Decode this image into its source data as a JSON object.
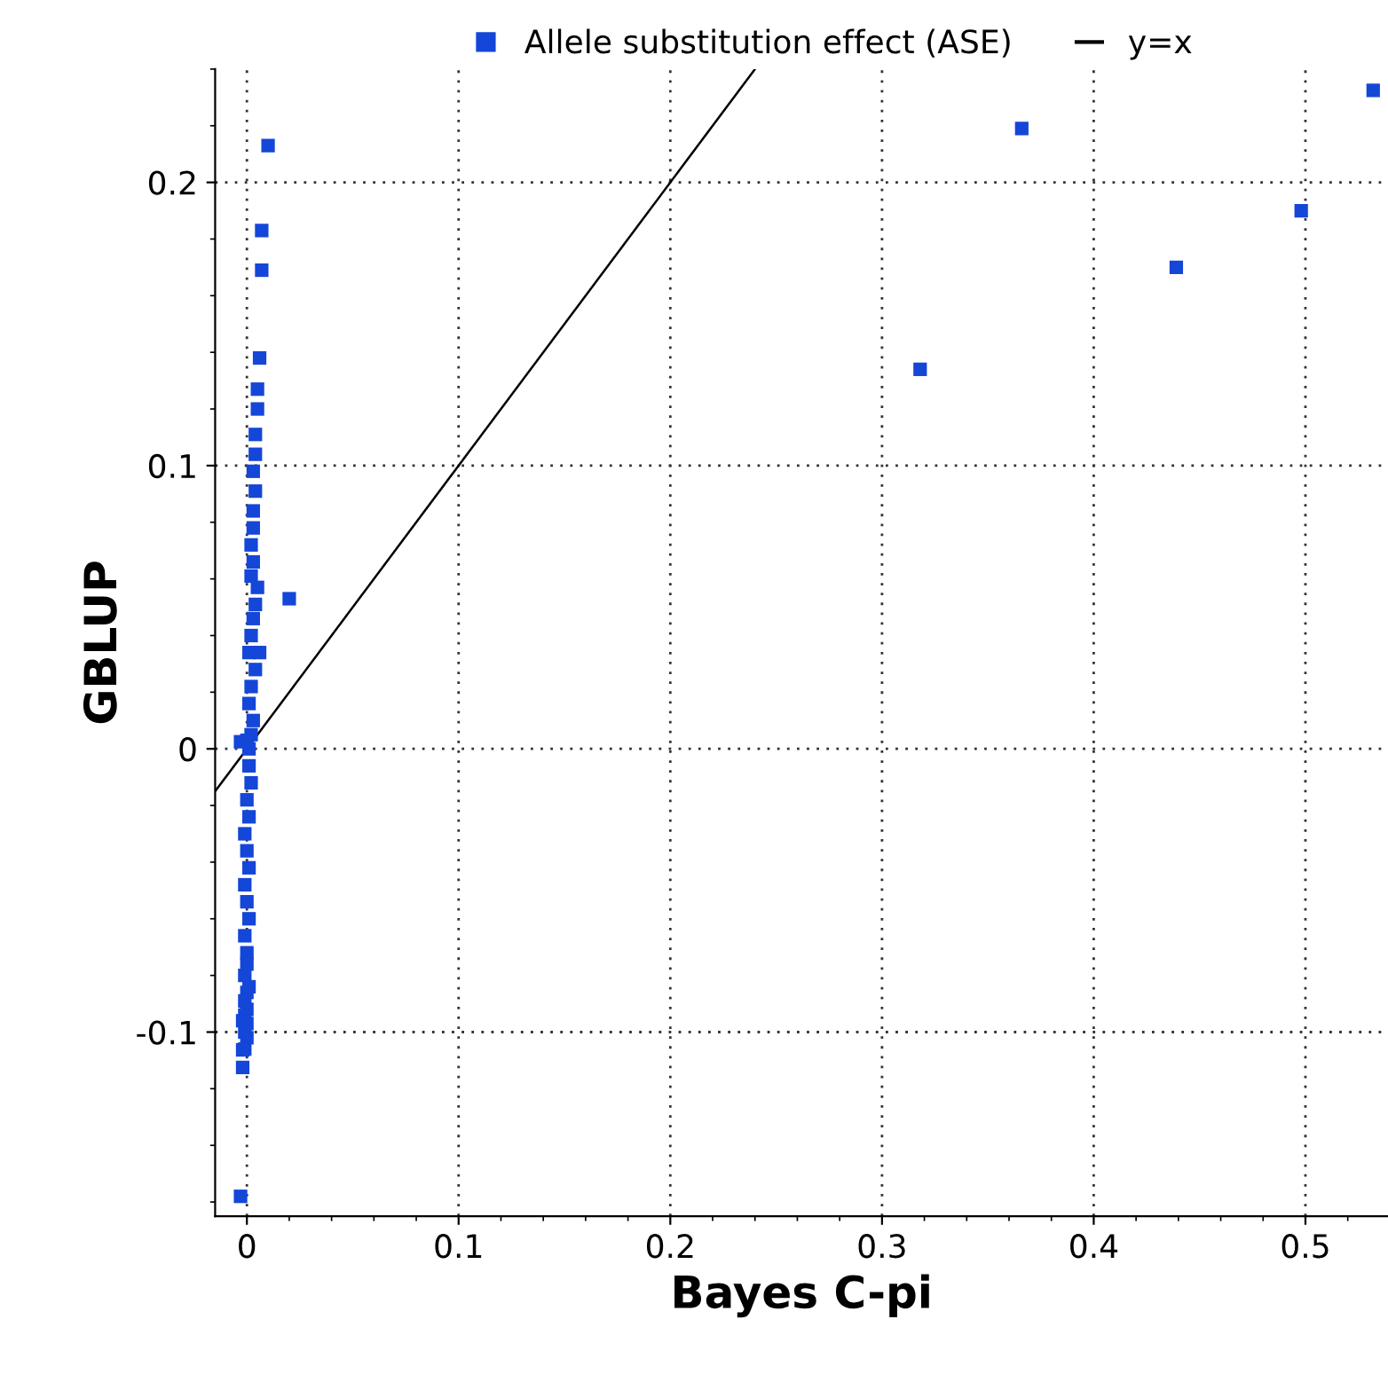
{
  "chart_data": {
    "type": "scatter",
    "xlabel": "Bayes C-pi",
    "ylabel": "GBLUP",
    "xlim": [
      -0.015,
      0.539
    ],
    "ylim": [
      -0.165,
      0.24
    ],
    "xticks": [
      0,
      0.1,
      0.2,
      0.3,
      0.4,
      0.5
    ],
    "yticks": [
      -0.1,
      0,
      0.1,
      0.2
    ],
    "grid": true,
    "legend": "top",
    "marker": "square",
    "series": [
      {
        "name": "Allele substitution effect (ASE)",
        "color": "#1446d8",
        "x": [
          0.01,
          0.007,
          0.007,
          0.006,
          0.005,
          0.005,
          0.004,
          0.004,
          0.003,
          0.004,
          0.003,
          0.003,
          0.002,
          0.003,
          0.002,
          0.005,
          0.004,
          0.003,
          0.002,
          0.001,
          0.006,
          0.004,
          0.002,
          0.001,
          0.003,
          0.002,
          0.001,
          0.0,
          -0.003,
          0.001,
          0.002,
          0.0,
          0.001,
          -0.001,
          0.0,
          0.001,
          -0.001,
          0.0,
          0.001,
          -0.001,
          0.0,
          0.0,
          -0.001,
          0.001,
          0.0,
          -0.001,
          0.0,
          -0.001,
          0.0,
          -0.002,
          -0.001,
          0.0,
          -0.001,
          -0.002,
          -0.002,
          -0.003,
          0.02,
          0.318,
          0.366,
          0.439,
          0.498,
          0.532
        ],
        "values": [
          0.213,
          0.183,
          0.169,
          0.138,
          0.127,
          0.12,
          0.111,
          0.104,
          0.098,
          0.091,
          0.084,
          0.078,
          0.072,
          0.066,
          0.061,
          0.057,
          0.051,
          0.046,
          0.04,
          0.034,
          0.034,
          0.028,
          0.022,
          0.016,
          0.01,
          0.005,
          0.0,
          0.003,
          0.0025,
          -0.006,
          -0.012,
          -0.018,
          -0.024,
          -0.03,
          -0.036,
          -0.042,
          -0.048,
          -0.054,
          -0.06,
          -0.066,
          -0.072,
          -0.076,
          -0.08,
          -0.084,
          -0.086,
          -0.089,
          -0.092,
          -0.094,
          -0.097,
          -0.096,
          -0.1,
          -0.102,
          -0.106,
          -0.1063,
          -0.1125,
          -0.158,
          0.053,
          0.134,
          0.219,
          0.17,
          0.19,
          0.2325
        ]
      },
      {
        "name": "y=x",
        "color": "#000000",
        "type": "line",
        "marker": "none",
        "x": [
          -0.015,
          0.24
        ],
        "values": [
          -0.015,
          0.24
        ]
      }
    ]
  }
}
